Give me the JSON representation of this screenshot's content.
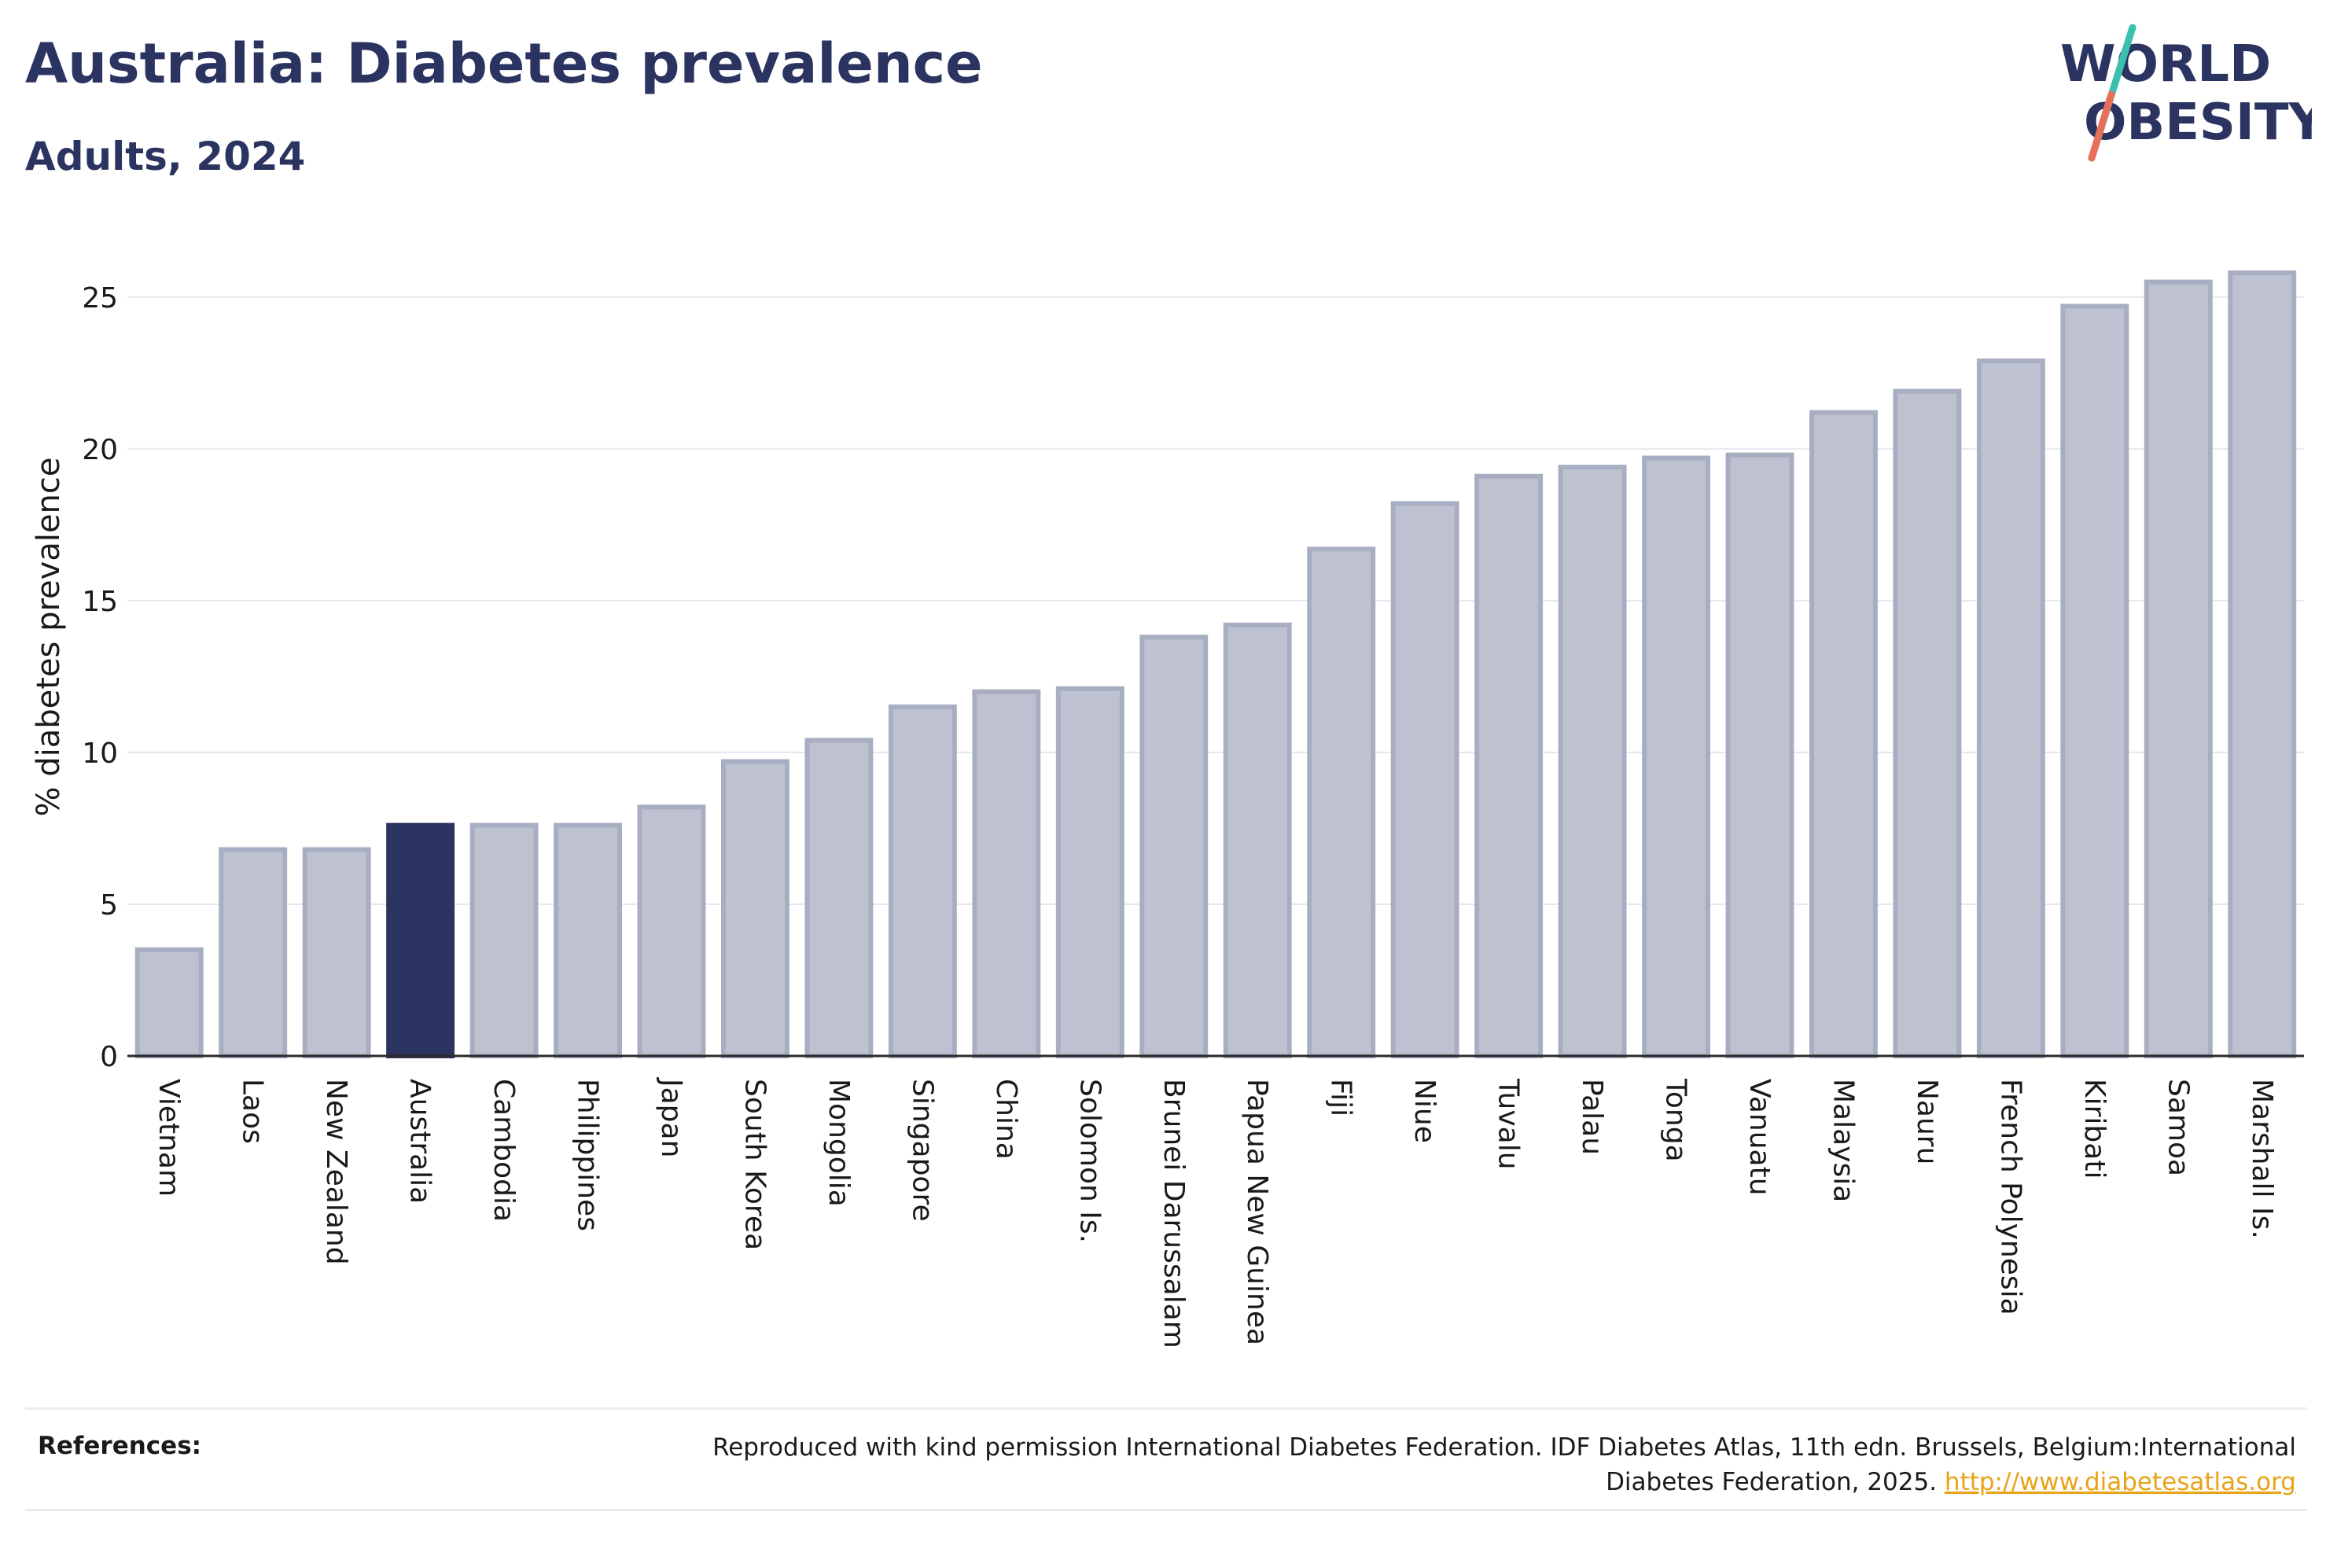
{
  "header": {
    "title": "Australia: Diabetes prevalence",
    "subtitle": "Adults, 2024"
  },
  "logo": {
    "line1": "WORLD",
    "line2": "OBESITY",
    "icon": "slash-logo-mark",
    "colors": {
      "text": "#2b3461",
      "slash_top": "#3bbfb0",
      "slash_bottom": "#e8705a"
    }
  },
  "references": {
    "label": "References:",
    "text": "Reproduced with kind permission International Diabetes Federation. IDF Diabetes Atlas, 11th edn. Brussels, Belgium:International Diabetes Federation, 2025.",
    "link": "http://www.diabetesatlas.org"
  },
  "colors": {
    "bar_fill": "#bec2d0",
    "bar_stroke": "#a8aec2",
    "highlight_fill": "#2b3461",
    "axis": "#2a2a2a",
    "grid": "#e6e8ee",
    "text": "#1a1a1a"
  },
  "chart_data": {
    "type": "bar",
    "title": "Australia: Diabetes prevalence",
    "subtitle": "Adults, 2024",
    "xlabel": "",
    "ylabel": "% diabetes prevalence",
    "ylim": [
      0,
      26.5
    ],
    "yticks": [
      0,
      5,
      10,
      15,
      20,
      25
    ],
    "grid": true,
    "highlight": "Australia",
    "categories": [
      "Vietnam",
      "Laos",
      "New Zealand",
      "Australia",
      "Cambodia",
      "Philippines",
      "Japan",
      "South Korea",
      "Mongolia",
      "Singapore",
      "China",
      "Solomon Is.",
      "Brunei Darussalam",
      "Papua New Guinea",
      "Fiji",
      "Niue",
      "Tuvalu",
      "Palau",
      "Tonga",
      "Vanuatu",
      "Malaysia",
      "Nauru",
      "French Polynesia",
      "Kiribati",
      "Samoa",
      "Marshall Is."
    ],
    "values": [
      3.5,
      6.8,
      6.8,
      7.6,
      7.6,
      7.6,
      8.2,
      9.7,
      10.4,
      11.5,
      12.0,
      12.1,
      13.8,
      14.2,
      16.7,
      18.2,
      19.1,
      19.4,
      19.7,
      19.8,
      21.2,
      21.9,
      22.9,
      24.7,
      25.5,
      25.8
    ]
  }
}
